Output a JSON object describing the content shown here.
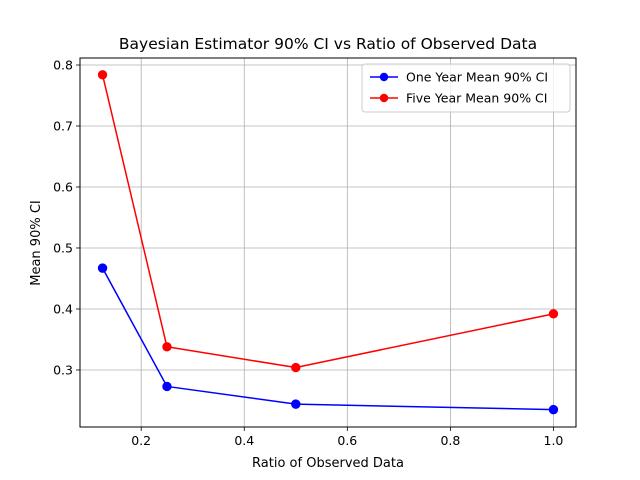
{
  "chart_data": {
    "type": "line",
    "title": "Bayesian Estimator 90% CI vs Ratio of Observed Data",
    "xlabel": "Ratio of Observed Data",
    "ylabel": "Mean 90% CI",
    "x": [
      0.125,
      0.25,
      0.5,
      1.0
    ],
    "xlim": [
      0.08125,
      1.04375
    ],
    "ylim": [
      0.2065,
      0.8115
    ],
    "xticks": [
      0.2,
      0.4,
      0.6,
      0.8,
      1.0
    ],
    "xtick_labels": [
      "0.2",
      "0.4",
      "0.6",
      "0.8",
      "1.0"
    ],
    "yticks": [
      0.3,
      0.4,
      0.5,
      0.6,
      0.7,
      0.8
    ],
    "ytick_labels": [
      "0.3",
      "0.4",
      "0.5",
      "0.6",
      "0.7",
      "0.8"
    ],
    "grid": true,
    "legend_position": "top-right",
    "series": [
      {
        "name": "One Year Mean 90% CI",
        "color": "#0000ff",
        "marker": "circle",
        "values": [
          0.467,
          0.273,
          0.244,
          0.235
        ]
      },
      {
        "name": "Five Year Mean 90% CI",
        "color": "#ff0000",
        "marker": "circle",
        "values": [
          0.784,
          0.338,
          0.304,
          0.392
        ]
      }
    ]
  }
}
